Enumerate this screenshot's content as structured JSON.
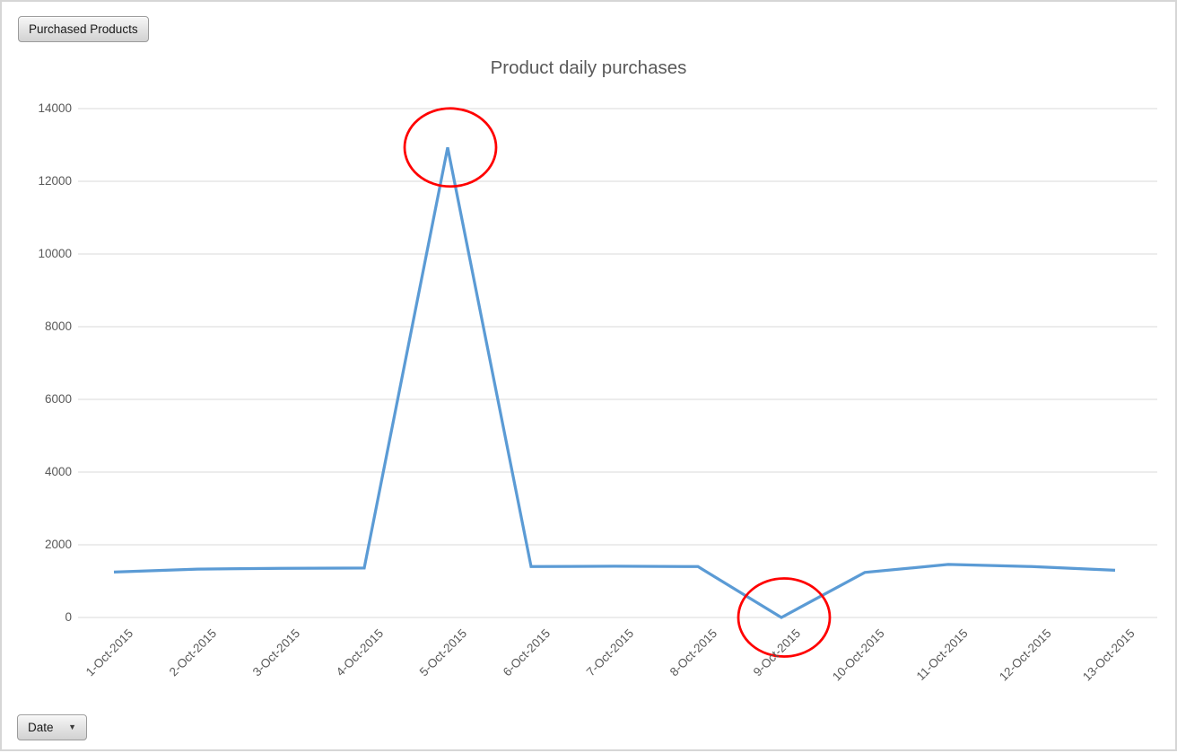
{
  "window": {
    "background": "#FFFFFF",
    "frame_color": "#D6D6D6"
  },
  "pivot_buttons": {
    "series_field": {
      "label": "Purchased Products"
    },
    "category_field": {
      "label": "Date",
      "dropdown_glyph": "▼",
      "dropdown_icon": "dropdown-arrow-icon"
    }
  },
  "chart_data": {
    "type": "line",
    "title": "Product daily purchases",
    "categories": [
      "1-Oct-2015",
      "2-Oct-2015",
      "3-Oct-2015",
      "4-Oct-2015",
      "5-Oct-2015",
      "6-Oct-2015",
      "7-Oct-2015",
      "8-Oct-2015",
      "9-Oct-2015",
      "10-Oct-2015",
      "11-Oct-2015",
      "12-Oct-2015",
      "13-Oct-2015"
    ],
    "series": [
      {
        "name": "Purchased Products",
        "color": "#5B9BD5",
        "values": [
          1250,
          1330,
          1350,
          1360,
          12930,
          1400,
          1410,
          1400,
          0,
          1240,
          1460,
          1400,
          1300
        ]
      }
    ],
    "xlabel": "",
    "ylabel": "",
    "ylim": [
      0,
      14000
    ],
    "yticks": [
      0,
      2000,
      4000,
      6000,
      8000,
      10000,
      12000,
      14000
    ],
    "grid": true,
    "legend": "none",
    "gridline_color": "#D9D9D9",
    "title_color": "#595959",
    "tick_label_color": "#595959",
    "annotations": [
      {
        "shape": "ellipse",
        "color": "#FF0000",
        "target_category": "5-Oct-2015",
        "target_value": 12930,
        "meaning": "spike-highlight"
      },
      {
        "shape": "ellipse",
        "color": "#FF0000",
        "target_category": "9-Oct-2015",
        "target_value": 0,
        "meaning": "dip-highlight"
      }
    ]
  }
}
